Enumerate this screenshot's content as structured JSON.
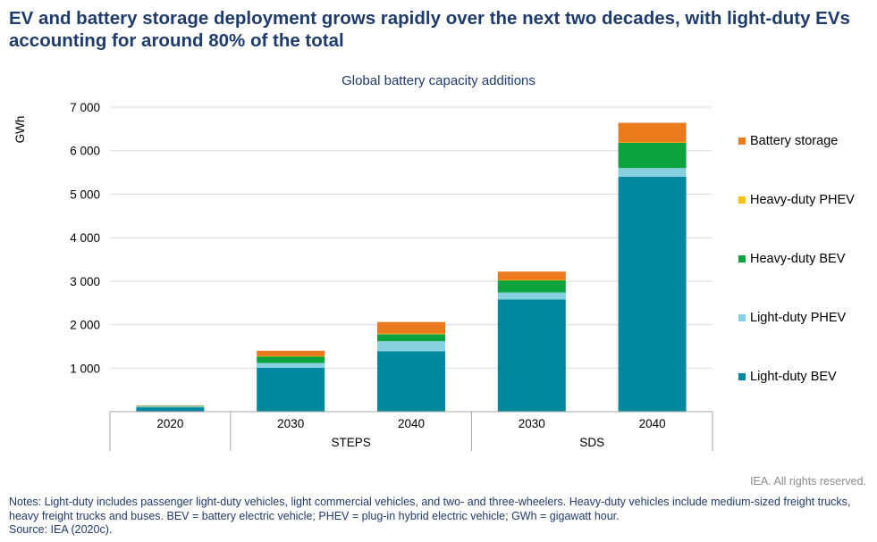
{
  "headline": "EV and battery storage deployment grows rapidly over the next two decades, with light-duty EVs accounting for around 80% of the total",
  "chart_data": {
    "type": "bar",
    "stacked": true,
    "title": "Global battery capacity additions",
    "ylabel": "GWh",
    "ylim": [
      0,
      7000
    ],
    "yticks": [
      "1 000",
      "2 000",
      "3 000",
      "4 000",
      "5 000",
      "6 000",
      "7 000"
    ],
    "ytick_values": [
      1000,
      2000,
      3000,
      4000,
      5000,
      6000,
      7000
    ],
    "categories": [
      "2020",
      "2030",
      "2040",
      "2030",
      "2040"
    ],
    "groups": [
      {
        "label": "",
        "categories": [
          0
        ]
      },
      {
        "label": "STEPS",
        "categories": [
          1,
          2
        ]
      },
      {
        "label": "SDS",
        "categories": [
          3,
          4
        ]
      }
    ],
    "series": [
      {
        "name": "Light-duty BEV",
        "color": "#00889e",
        "values": [
          100,
          1010,
          1390,
          2580,
          5400
        ]
      },
      {
        "name": "Light-duty PHEV",
        "color": "#86d0e0",
        "values": [
          20,
          110,
          230,
          160,
          200
        ]
      },
      {
        "name": "Heavy-duty BEV",
        "color": "#0aa33d",
        "values": [
          10,
          150,
          160,
          280,
          580
        ]
      },
      {
        "name": "Heavy-duty PHEV",
        "color": "#f5c400",
        "values": [
          0,
          5,
          10,
          5,
          10
        ]
      },
      {
        "name": "Battery storage",
        "color": "#ea7a1c",
        "values": [
          10,
          125,
          270,
          195,
          450
        ]
      }
    ],
    "legend_position": "right",
    "grid": true
  },
  "credit": "IEA. All rights reserved.",
  "notes": [
    "Notes: Light-duty includes passenger light-duty vehicles, light commercial vehicles, and two- and three-wheelers. Heavy-duty vehicles include medium-sized freight trucks, heavy freight trucks and buses. BEV = battery electric vehicle; PHEV = plug-in hybrid electric vehicle; GWh = gigawatt hour.",
    "Source: IEA (2020c)."
  ]
}
